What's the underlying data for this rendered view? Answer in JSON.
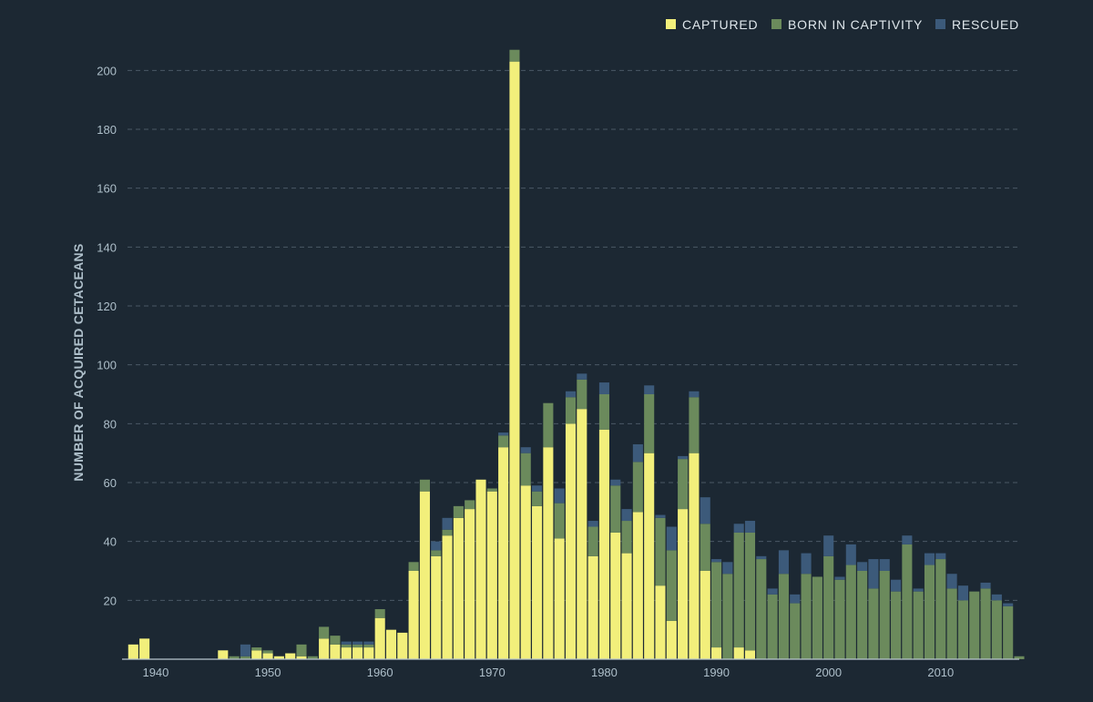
{
  "chart_data": {
    "type": "bar",
    "stacked": true,
    "ylabel": "NUMBER OF ACQUIRED CETACEANS",
    "xlabel": "",
    "ylim": [
      0,
      210
    ],
    "xlim": [
      1937,
      2017
    ],
    "yticks": [
      20,
      40,
      60,
      80,
      100,
      120,
      140,
      160,
      180,
      200
    ],
    "xticks": [
      1940,
      1950,
      1960,
      1970,
      1980,
      1990,
      2000,
      2010
    ],
    "grid": "horizontal dashed",
    "legend_position": "top-right",
    "x": [
      1938,
      1939,
      1946,
      1947,
      1948,
      1949,
      1950,
      1951,
      1952,
      1953,
      1954,
      1955,
      1956,
      1957,
      1958,
      1959,
      1960,
      1961,
      1962,
      1963,
      1964,
      1965,
      1966,
      1967,
      1968,
      1969,
      1970,
      1971,
      1972,
      1973,
      1974,
      1975,
      1976,
      1977,
      1978,
      1979,
      1980,
      1981,
      1982,
      1983,
      1984,
      1985,
      1986,
      1987,
      1988,
      1989,
      1990,
      1991,
      1992,
      1993,
      1994,
      1995,
      1996,
      1997,
      1998,
      1999,
      2000,
      2001,
      2002,
      2003,
      2004,
      2005,
      2006,
      2007,
      2008,
      2009,
      2010,
      2011,
      2012,
      2013,
      2014,
      2015,
      2016,
      2017
    ],
    "series": [
      {
        "name": "CAPTURED",
        "color": "#f2ef7b",
        "values": [
          5,
          7,
          3,
          0,
          0,
          3,
          2,
          1,
          2,
          1,
          0,
          7,
          5,
          4,
          4,
          4,
          14,
          10,
          9,
          30,
          57,
          35,
          42,
          48,
          51,
          61,
          57,
          72,
          203,
          59,
          52,
          72,
          41,
          80,
          85,
          35,
          78,
          43,
          36,
          50,
          70,
          25,
          13,
          51,
          70,
          30,
          4,
          0,
          4,
          3,
          0,
          0,
          0,
          0,
          0,
          0,
          0,
          0,
          0,
          0,
          0,
          0,
          0,
          0,
          0,
          0,
          0,
          0,
          0,
          0,
          0,
          0,
          0,
          0
        ]
      },
      {
        "name": "BORN IN CAPTIVITY",
        "color": "#6b8a5c",
        "values": [
          0,
          0,
          0,
          1,
          1,
          1,
          1,
          0,
          0,
          4,
          1,
          4,
          3,
          1,
          1,
          1,
          3,
          0,
          0,
          3,
          4,
          2,
          2,
          4,
          3,
          0,
          1,
          4,
          4,
          11,
          5,
          15,
          12,
          9,
          10,
          10,
          12,
          16,
          11,
          17,
          20,
          23,
          24,
          17,
          19,
          16,
          29,
          29,
          39,
          40,
          34,
          22,
          29,
          19,
          29,
          28,
          35,
          27,
          32,
          30,
          24,
          30,
          23,
          39,
          23,
          32,
          34,
          24,
          20,
          23,
          24,
          20,
          18,
          1
        ]
      },
      {
        "name": "RESCUED",
        "color": "#3c5a7a",
        "values": [
          0,
          0,
          0,
          0,
          4,
          0,
          0,
          0,
          0,
          0,
          0,
          0,
          0,
          1,
          1,
          1,
          0,
          0,
          0,
          0,
          0,
          3,
          4,
          0,
          0,
          0,
          0,
          1,
          0,
          2,
          2,
          0,
          5,
          2,
          2,
          2,
          4,
          2,
          4,
          6,
          3,
          1,
          8,
          1,
          2,
          9,
          1,
          4,
          3,
          4,
          1,
          2,
          8,
          3,
          7,
          0,
          7,
          1,
          7,
          3,
          10,
          4,
          4,
          3,
          1,
          4,
          2,
          5,
          5,
          0,
          2,
          2,
          1,
          0
        ]
      }
    ]
  }
}
